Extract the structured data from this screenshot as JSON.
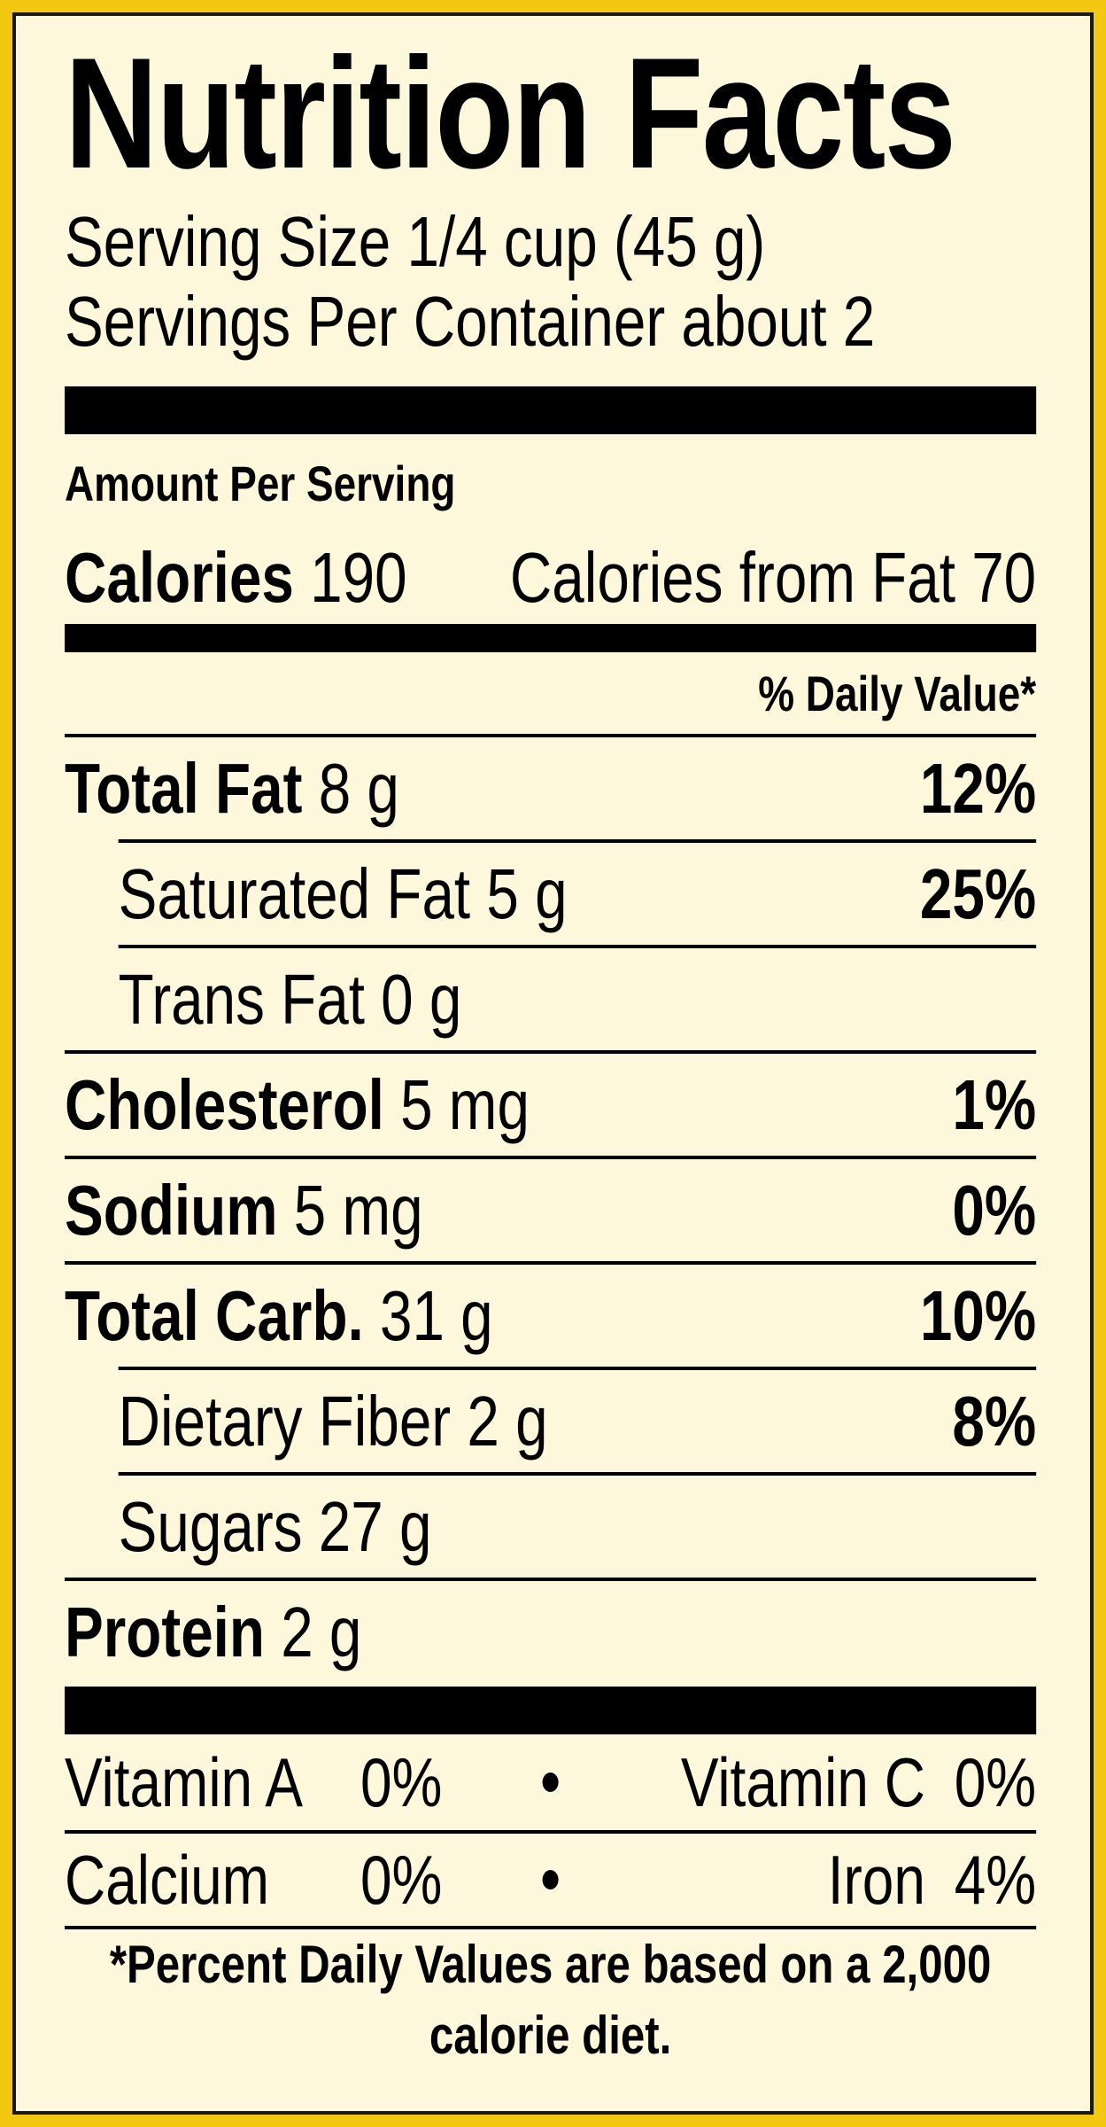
{
  "title": "Nutrition Facts",
  "serving_size": "Serving Size 1/4 cup (45 g)",
  "servings_per_container": "Servings Per Container about 2",
  "amount_per_serving": "Amount Per Serving",
  "calories": {
    "label": "Calories",
    "value": "190"
  },
  "calories_from_fat": "Calories from Fat 70",
  "daily_value_header": "% Daily Value*",
  "nutrients": [
    {
      "name": "Total Fat",
      "amount": "8 g",
      "dv": "12%"
    },
    {
      "name": "Saturated Fat",
      "amount": "5 g",
      "dv": "25%"
    },
    {
      "name": "Trans Fat",
      "amount": "0 g"
    },
    {
      "name": "Cholesterol",
      "amount": "5 mg",
      "dv": "1%"
    },
    {
      "name": "Sodium",
      "amount": "5 mg",
      "dv": "0%"
    },
    {
      "name": "Total Carb.",
      "amount": "31 g",
      "dv": "10%"
    },
    {
      "name": "Dietary Fiber",
      "amount": "2 g",
      "dv": "8%"
    },
    {
      "name": "Sugars",
      "amount": "27 g"
    },
    {
      "name": "Protein",
      "amount": "2 g"
    }
  ],
  "vitamins": [
    {
      "name": "Vitamin A",
      "dv": "0%"
    },
    {
      "name": "Vitamin C",
      "dv": "0%"
    },
    {
      "name": "Calcium",
      "dv": "0%"
    },
    {
      "name": "Iron",
      "dv": "4%"
    }
  ],
  "footnote": "*Percent Daily Values are based on a 2,000 calorie diet."
}
